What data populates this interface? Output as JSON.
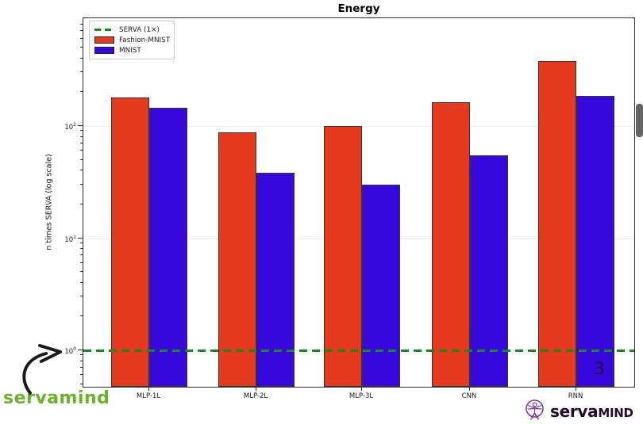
{
  "title": "Energy",
  "chart_data": {
    "type": "bar",
    "title": "Energy",
    "xlabel": "",
    "ylabel": "n times SERVA (log scale)",
    "yscale": "log",
    "ylim": [
      0.45,
      900
    ],
    "ytick_exponents": [
      0,
      1,
      2
    ],
    "grid": "horizontal-major",
    "legend_position": "upper left",
    "categories": [
      "MLP-1L",
      "MLP-2L",
      "MLP-3L",
      "CNN",
      "RNN"
    ],
    "series": [
      {
        "name": "Fashion-MNIST",
        "color": "#e53a1e",
        "values": [
          175,
          85,
          97,
          158,
          365
        ]
      },
      {
        "name": "MNIST",
        "color": "#3708dd",
        "values": [
          140,
          37,
          29,
          53,
          180
        ]
      }
    ],
    "reference_line": {
      "label": "SERVA (1×)",
      "value": 1,
      "style": "dashed",
      "color": "#178a1e"
    },
    "legend_entries": [
      {
        "label": "SERVA (1×)",
        "swatch": "dash",
        "color": "#178a1e"
      },
      {
        "label": "Fashion-MNIST",
        "swatch": "patch",
        "color": "#e53a1e"
      },
      {
        "label": "MNIST",
        "swatch": "patch",
        "color": "#3708dd"
      }
    ]
  },
  "annotations": {
    "page_number": "3"
  },
  "watermark": {
    "text": "servamind",
    "color": "#69b32b"
  },
  "brand": {
    "text_main": "serva",
    "text_sub": "MIND",
    "icon": "vitruvian-man-icon",
    "icon_color": "#7d3c98"
  }
}
